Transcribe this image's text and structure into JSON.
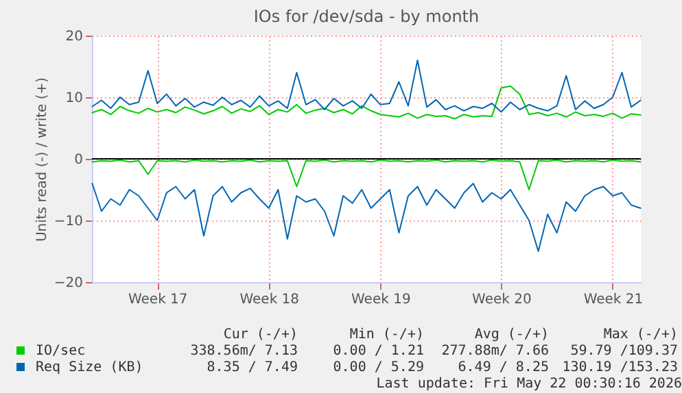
{
  "chart_data": {
    "type": "line",
    "title": "IOs for /dev/sda - by month",
    "ylabel": "Units read (-) / write (+)",
    "series": [
      {
        "name": "IO/sec",
        "color": "#00cc00",
        "values": [
          7.5,
          8.0,
          7.2,
          8.5,
          7.8,
          7.4,
          8.2,
          7.6,
          8.0,
          7.5,
          8.4,
          7.9,
          7.3,
          7.8,
          8.5,
          7.4,
          8.1,
          7.7,
          8.6,
          7.2,
          8.0,
          7.6,
          8.8,
          7.4,
          7.9,
          8.2,
          7.5,
          8.0,
          7.3,
          8.6,
          7.8,
          7.2,
          7.0,
          6.8,
          7.4,
          6.6,
          7.2,
          6.9,
          7.0,
          6.5,
          7.2,
          6.8,
          7.0,
          6.9,
          11.5,
          11.8,
          10.5,
          7.2,
          7.5,
          7.0,
          7.4,
          6.8,
          7.6,
          7.0,
          7.2,
          6.9,
          7.4,
          6.6,
          7.3,
          7.1
        ]
      },
      {
        "name": "Req Size (KB)",
        "color": "#0066b3",
        "values": [
          8.5,
          9.5,
          8.2,
          10.0,
          8.8,
          9.2,
          14.3,
          9.0,
          10.5,
          8.6,
          9.8,
          8.4,
          9.2,
          8.7,
          10.0,
          8.8,
          9.5,
          8.4,
          10.2,
          8.6,
          9.4,
          8.2,
          14.0,
          8.8,
          9.6,
          8.0,
          9.8,
          8.6,
          9.4,
          8.2,
          10.5,
          8.8,
          9.0,
          12.5,
          8.6,
          16.0,
          8.4,
          9.6,
          8.0,
          8.6,
          7.8,
          8.5,
          8.2,
          9.0,
          7.6,
          9.2,
          8.0,
          8.8,
          8.2,
          7.8,
          8.6,
          13.5,
          8.0,
          9.4,
          8.2,
          8.8,
          10.0,
          14.0,
          8.4,
          9.5
        ]
      },
      {
        "color": "#00cc00",
        "values": [
          -0.5,
          -0.3,
          -0.4,
          -0.2,
          -0.5,
          -0.3,
          -2.5,
          -0.3,
          -0.4,
          -0.3,
          -0.5,
          -0.2,
          -0.4,
          -0.3,
          -0.5,
          -0.3,
          -0.4,
          -0.2,
          -0.5,
          -0.3,
          -0.4,
          -0.3,
          -4.5,
          -0.3,
          -0.4,
          -0.2,
          -0.5,
          -0.3,
          -0.4,
          -0.3,
          -0.5,
          -0.2,
          -0.4,
          -0.3,
          -0.5,
          -0.3,
          -0.4,
          -0.2,
          -0.5,
          -0.3,
          -0.4,
          -0.3,
          -0.5,
          -0.2,
          -0.4,
          -0.3,
          -0.5,
          -5.0,
          -0.3,
          -0.4,
          -0.2,
          -0.5,
          -0.3,
          -0.4,
          -0.3,
          -0.5,
          -0.2,
          -0.4,
          -0.3,
          -0.5
        ]
      },
      {
        "color": "#0066b3",
        "values": [
          -4.0,
          -8.5,
          -6.5,
          -7.5,
          -5.0,
          -6.0,
          -8.0,
          -10.0,
          -5.5,
          -4.5,
          -6.5,
          -5.0,
          -12.5,
          -6.0,
          -4.5,
          -7.0,
          -5.5,
          -4.8,
          -6.5,
          -8.0,
          -5.0,
          -13.0,
          -6.0,
          -7.0,
          -6.5,
          -8.5,
          -12.5,
          -6.0,
          -7.2,
          -5.0,
          -8.0,
          -6.5,
          -5.0,
          -12.0,
          -6.0,
          -4.5,
          -7.5,
          -5.0,
          -6.5,
          -8.0,
          -5.5,
          -4.0,
          -7.0,
          -5.5,
          -6.5,
          -5.0,
          -7.5,
          -10.0,
          -15.0,
          -9.0,
          -12.0,
          -7.0,
          -8.5,
          -6.0,
          -5.0,
          -4.5,
          -6.0,
          -5.5,
          -7.5,
          -8.0
        ]
      }
    ],
    "categories": [
      null,
      null,
      null,
      null,
      null,
      null,
      null,
      "Week 17",
      null,
      null,
      null,
      null,
      null,
      null,
      null,
      null,
      null,
      null,
      null,
      "Week 18",
      null,
      null,
      null,
      null,
      null,
      null,
      null,
      null,
      null,
      null,
      null,
      "Week 19",
      null,
      null,
      null,
      null,
      null,
      null,
      null,
      null,
      null,
      null,
      null,
      null,
      "Week 20",
      null,
      null,
      null,
      null,
      null,
      null,
      null,
      null,
      null,
      null,
      null,
      "Week 21",
      null,
      null,
      null
    ],
    "ylim": [
      -20,
      20
    ],
    "yticks": [
      -20,
      -10,
      0,
      10,
      20
    ],
    "grid": true,
    "legend": "bottom",
    "line_style": "solid",
    "ref_lines": [
      {
        "axis": "y",
        "value": 0,
        "color": "#000000"
      }
    ],
    "annotations": [
      "Cur (-/+)",
      "Min (-/+)",
      "Avg (-/+)",
      "Max (-/+)",
      "338.56m/ 7.13",
      "0.00 / 1.21",
      "277.88m/ 7.66",
      "59.79 /109.37",
      "8.35 / 7.49",
      "0.00 / 5.29",
      "6.49 / 8.25",
      "130.19 /153.23",
      "Last update: Fri May 22 00:30:16 2026"
    ]
  }
}
